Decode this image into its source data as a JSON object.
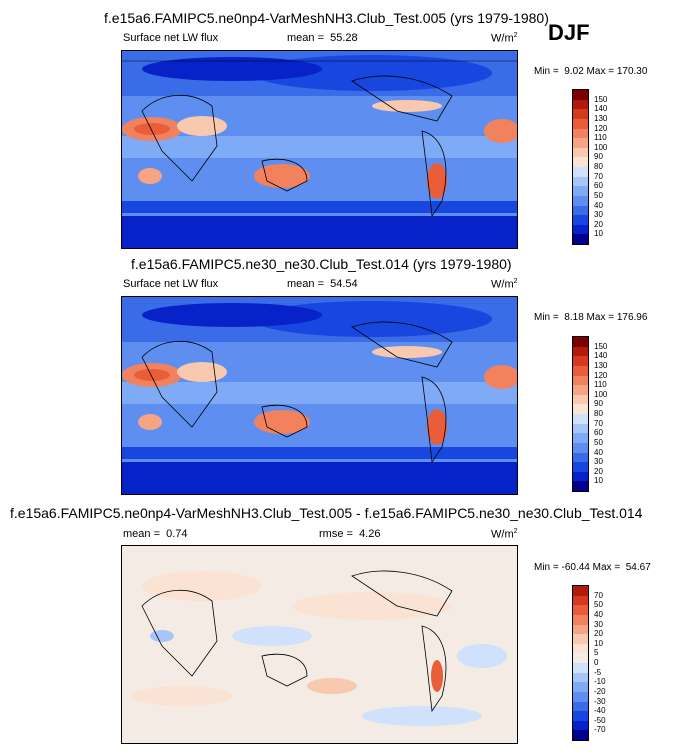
{
  "season": "DJF",
  "colors": {
    "levels_abs": [
      "#00008f",
      "#0622c8",
      "#1847e0",
      "#3a6ce8",
      "#5e8ff0",
      "#7faaf5",
      "#a6c6fa",
      "#cfe1fb",
      "#fbe3d3",
      "#f8c9ae",
      "#f5a584",
      "#f2825e",
      "#ea5d39",
      "#d63a1e",
      "#b21a0e",
      "#7d0000"
    ],
    "levels_diff": [
      "#00008f",
      "#0622c8",
      "#1847e0",
      "#3a6ce8",
      "#5e8ff0",
      "#7faaf5",
      "#a6c6fa",
      "#cfe1fb",
      "#f4ece4",
      "#fbe3d3",
      "#f8c9ae",
      "#f5a584",
      "#f2825e",
      "#ea5d39",
      "#d63a1e",
      "#b21a0e",
      "#7d0000"
    ]
  },
  "chart_data": [
    {
      "type": "heatmap",
      "title": "f.e15a6.FAMIPC5.ne0np4-VarMeshNH3.Club_Test.005 (yrs 1979-1980)",
      "variable": "Surface net LW flux",
      "mean_label": "mean =",
      "mean": "55.28",
      "units": "W/m",
      "units_sup": "2",
      "min_label": "Min =",
      "min": "9.02",
      "max_label": "Max =",
      "max": "170.30",
      "colorbar_levels": [
        "150",
        "140",
        "130",
        "120",
        "110",
        "100",
        "90",
        "80",
        "70",
        "60",
        "50",
        "40",
        "30",
        "20",
        "10"
      ]
    },
    {
      "type": "heatmap",
      "title": "f.e15a6.FAMIPC5.ne30_ne30.Club_Test.014 (yrs 1979-1980)",
      "variable": "Surface net LW flux",
      "mean_label": "mean =",
      "mean": "54.54",
      "units": "W/m",
      "units_sup": "2",
      "min_label": "Min =",
      "min": "8.18",
      "max_label": "Max =",
      "max": "176.96",
      "colorbar_levels": [
        "150",
        "140",
        "130",
        "120",
        "110",
        "100",
        "90",
        "80",
        "70",
        "60",
        "50",
        "40",
        "30",
        "20",
        "10"
      ]
    },
    {
      "type": "heatmap",
      "title": "f.e15a6.FAMIPC5.ne0np4-VarMeshNH3.Club_Test.005 - f.e15a6.FAMIPC5.ne30_ne30.Club_Test.014",
      "mean_label": "mean =",
      "mean": "0.74",
      "rmse_label": "rmse =",
      "rmse": "4.26",
      "units": "W/m",
      "units_sup": "2",
      "min_label": "Min =",
      "min": "-60.44",
      "max_label": "Max =",
      "max": "54.67",
      "colorbar_levels": [
        "70",
        "50",
        "40",
        "30",
        "20",
        "10",
        "5",
        "0",
        "-5",
        "-10",
        "-20",
        "-30",
        "-40",
        "-50",
        "-70"
      ]
    }
  ]
}
